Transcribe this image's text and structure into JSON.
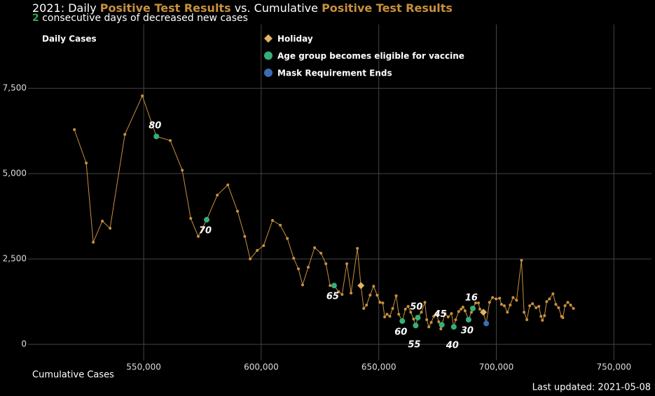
{
  "chart_data": {
    "type": "line",
    "title_parts": [
      "2021: Daily ",
      "Positive Test Results",
      " vs. Cumulative ",
      "Positive Test Results"
    ],
    "subtitle_parts": [
      "2",
      " consecutive days of decreased new cases"
    ],
    "x_label": "Cumulative Cases",
    "footer": "Last updated: 2021-05-08",
    "accent_color": "#c8903e",
    "streak_color": "#2ea84f",
    "xlim": [
      500800,
      766000
    ],
    "ylim": [
      -470,
      9370
    ],
    "xticks": [
      {
        "value": 550000,
        "label": "550,000"
      },
      {
        "value": 600000,
        "label": "600,000"
      },
      {
        "value": 650000,
        "label": "650,000"
      },
      {
        "value": 700000,
        "label": "700,000"
      },
      {
        "value": 750000,
        "label": "750,000"
      }
    ],
    "yticks": [
      0,
      {
        "value": 2500,
        "label": "2,500"
      },
      {
        "value": 5000,
        "label": "5,000"
      },
      {
        "value": 7500,
        "label": "7,500"
      }
    ],
    "grid": true,
    "series": [
      {
        "name": "Daily Cases",
        "color": "#c8903e",
        "x": [
          520500,
          525560,
          528540,
          532420,
          535700,
          542000,
          549400,
          555400,
          561300,
          566400,
          570000,
          573200,
          576800,
          581300,
          585800,
          589900,
          593000,
          595300,
          598300,
          601000,
          604800,
          608100,
          611100,
          613800,
          615800,
          617600,
          620000,
          622700,
          625400,
          627500,
          629300,
          631000,
          632900,
          634400,
          636400,
          638200,
          640900,
          642400,
          643600,
          644800,
          646300,
          647800,
          649300,
          650500,
          651700,
          652500,
          653500,
          654700,
          655900,
          657400,
          658500,
          660000,
          661300,
          662500,
          663600,
          664800,
          665700,
          666600,
          668100,
          669600,
          670400,
          671300,
          672300,
          673400,
          674600,
          675500,
          676400,
          676800,
          678200,
          679500,
          680900,
          681900,
          682700,
          684000,
          685000,
          685800,
          686700,
          688200,
          689400,
          690000,
          691200,
          692400,
          693000,
          694500,
          695700,
          697100,
          698400,
          699900,
          701400,
          702200,
          703400,
          704700,
          705900,
          707100,
          708600,
          710700,
          711800,
          713000,
          714200,
          715400,
          716900,
          718100,
          719000,
          719600,
          720500,
          721400,
          722600,
          724100,
          725300,
          726500,
          727700,
          728300,
          729200,
          730400,
          731600,
          732800
        ],
        "values": [
          6290,
          5310,
          2990,
          3610,
          3400,
          6150,
          7280,
          6090,
          5970,
          5100,
          3690,
          3160,
          3650,
          4370,
          4670,
          3900,
          3160,
          2500,
          2750,
          2890,
          3630,
          3490,
          3100,
          2520,
          2210,
          1740,
          2260,
          2830,
          2670,
          2360,
          1720,
          1720,
          1540,
          1460,
          2360,
          1500,
          2810,
          1720,
          1050,
          1150,
          1440,
          1700,
          1440,
          1230,
          1210,
          800,
          880,
          820,
          1050,
          1420,
          880,
          680,
          1030,
          1110,
          940,
          740,
          550,
          780,
          940,
          1230,
          720,
          510,
          640,
          820,
          900,
          660,
          450,
          570,
          900,
          800,
          900,
          510,
          720,
          960,
          1030,
          1090,
          980,
          720,
          940,
          1050,
          1210,
          1210,
          1030,
          940,
          610,
          1230,
          1370,
          1330,
          1350,
          1170,
          1130,
          940,
          1150,
          1370,
          1290,
          2460,
          940,
          720,
          1130,
          1190,
          1070,
          1110,
          820,
          700,
          840,
          1250,
          1330,
          1480,
          1170,
          1070,
          820,
          780,
          1130,
          1230,
          1150,
          1050
        ]
      },
      {
        "name": "Holiday",
        "color": "#e2b265",
        "x": [
          642400,
          694500
        ],
        "values": [
          1720,
          940
        ]
      },
      {
        "name": "Age group becomes eligible for vaccine",
        "color": "#33b07a",
        "x": [
          555400,
          576800,
          631000,
          660000,
          665700,
          666600,
          676800,
          681900,
          688200,
          690000
        ],
        "values": [
          6090,
          3650,
          1720,
          680,
          550,
          780,
          570,
          510,
          720,
          1050
        ],
        "point_labels": [
          80,
          70,
          65,
          60,
          55,
          50,
          45,
          40,
          30,
          16
        ]
      },
      {
        "name": "Mask Requirement Ends",
        "color": "#3b6cb5",
        "x": [
          695700
        ],
        "values": [
          610
        ]
      }
    ]
  }
}
